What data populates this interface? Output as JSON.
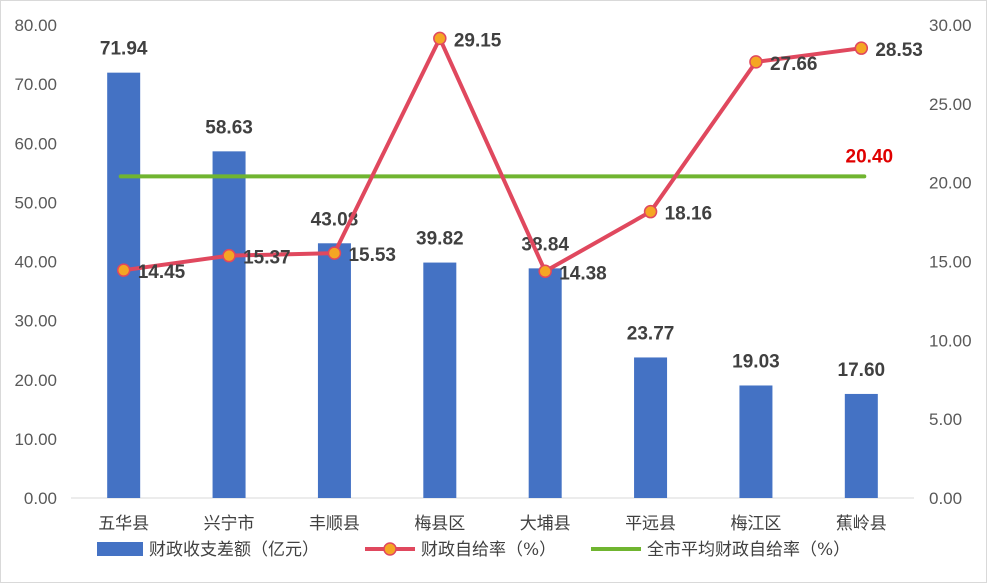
{
  "chart_data": {
    "type": "bar+line",
    "categories": [
      "五华县",
      "兴宁市",
      "丰顺县",
      "梅县区",
      "大埔县",
      "平远县",
      "梅江区",
      "蕉岭县"
    ],
    "series": [
      {
        "name": "财政收支差额（亿元）",
        "type": "bar",
        "axis": "left",
        "values": [
          71.94,
          58.63,
          43.08,
          39.82,
          38.84,
          23.77,
          19.03,
          17.6
        ],
        "labels": [
          "71.94",
          "58.63",
          "43.08",
          "39.82",
          "38.84",
          "23.77",
          "19.03",
          "17.60"
        ],
        "color": "#4472C4"
      },
      {
        "name": "财政自给率（%）",
        "type": "line",
        "axis": "right",
        "values": [
          14.45,
          15.37,
          15.53,
          29.15,
          14.38,
          18.16,
          27.66,
          28.53
        ],
        "labels": [
          "14.45",
          "15.37",
          "15.53",
          "29.15",
          "14.38",
          "18.16",
          "27.66",
          "28.53"
        ],
        "color": "#E0485E",
        "marker_color": "#F5A623"
      },
      {
        "name": "全市平均财政自给率（%）",
        "type": "line",
        "axis": "right",
        "values": [
          20.4,
          20.4,
          20.4,
          20.4,
          20.4,
          20.4,
          20.4,
          20.4
        ],
        "label": "20.40",
        "label_color": "#E00000",
        "color": "#70B530"
      }
    ],
    "y_left": {
      "lim": [
        0,
        80
      ],
      "ticks": [
        "0.00",
        "10.00",
        "20.00",
        "30.00",
        "40.00",
        "50.00",
        "60.00",
        "70.00",
        "80.00"
      ]
    },
    "y_right": {
      "lim": [
        0,
        30
      ],
      "ticks": [
        "0.00",
        "5.00",
        "10.00",
        "15.00",
        "20.00",
        "25.00",
        "30.00"
      ]
    },
    "grid": false,
    "legend_position": "bottom"
  }
}
